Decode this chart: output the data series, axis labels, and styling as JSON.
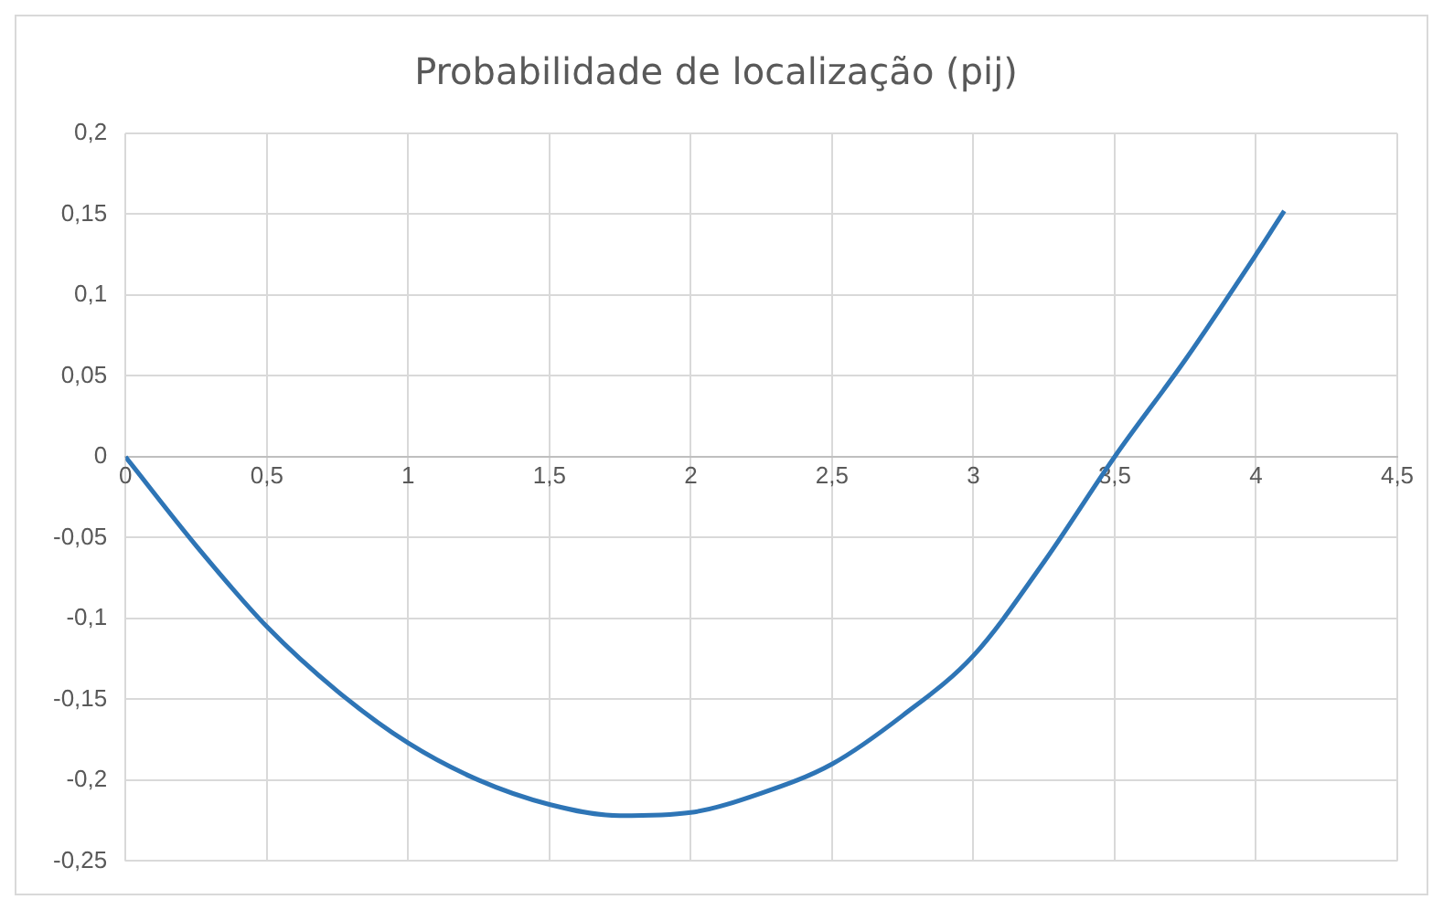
{
  "chart_data": {
    "type": "line",
    "title": "Probabilidade de localização (pij)",
    "x": [
      0,
      0.25,
      0.5,
      0.75,
      1,
      1.25,
      1.5,
      1.75,
      2,
      2.25,
      2.5,
      2.75,
      3,
      3.25,
      3.5,
      3.75,
      4,
      4.1
    ],
    "series": [
      {
        "color": "#2e75b6",
        "values": [
          0,
          -0.055,
          -0.105,
          -0.145,
          -0.177,
          -0.2,
          -0.215,
          -0.222,
          -0.22,
          -0.208,
          -0.19,
          -0.16,
          -0.123,
          -0.065,
          0,
          0.06,
          0.125,
          0.152
        ]
      }
    ],
    "xlim": [
      0,
      4.5
    ],
    "xticks": [
      0,
      {
        "value": 0.5,
        "label": "0,5"
      },
      1,
      {
        "value": 1.5,
        "label": "1,5"
      },
      2,
      {
        "value": 2.5,
        "label": "2,5"
      },
      3,
      {
        "value": 3.5,
        "label": "3,5"
      },
      4,
      {
        "value": 4.5,
        "label": "4,5"
      }
    ],
    "ylim": [
      -0.25,
      0.2
    ],
    "yticks": [
      {
        "value": -0.25,
        "label": "-0,25"
      },
      {
        "value": -0.2,
        "label": "-0,2"
      },
      {
        "value": -0.15,
        "label": "-0,15"
      },
      {
        "value": -0.1,
        "label": "-0,1"
      },
      {
        "value": -0.05,
        "label": "-0,05"
      },
      0,
      {
        "value": 0.05,
        "label": "0,05"
      },
      {
        "value": 0.1,
        "label": "0,1"
      },
      {
        "value": 0.15,
        "label": "0,15"
      },
      {
        "value": 0.2,
        "label": "0,2"
      }
    ],
    "grid": true,
    "legend": false,
    "marker": "none",
    "line_style": "solid"
  }
}
